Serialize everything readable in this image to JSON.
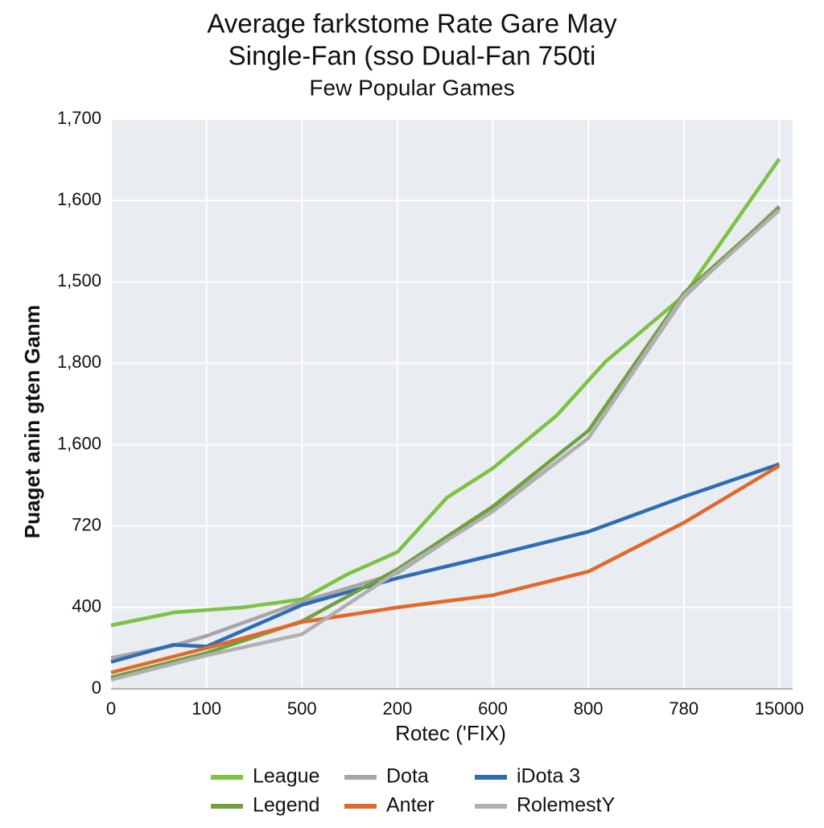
{
  "chart_data": {
    "type": "line",
    "title": "Average farkstome Rate Gare May",
    "subtitle": "Single-Fan (sso Dual-Fan 750ti",
    "annotation": "Few Popular Games",
    "xlabel": "Rotec ('FIX)",
    "ylabel": "Puaget anin gten Ganm",
    "xlim": [
      0,
      7.14
    ],
    "ylim": [
      0,
      7
    ],
    "xticks": [
      0,
      {
        "value": 1,
        "label": "100"
      },
      {
        "value": 2,
        "label": "500"
      },
      {
        "value": 3,
        "label": "200"
      },
      {
        "value": 4,
        "label": "600"
      },
      {
        "value": 5,
        "label": "800"
      },
      {
        "value": 6,
        "label": "780"
      },
      {
        "value": 7,
        "label": "15000"
      }
    ],
    "yticks": [
      0,
      {
        "value": 1,
        "label": "400"
      },
      {
        "value": 2,
        "label": "720"
      },
      {
        "value": 3,
        "label": "1,600"
      },
      {
        "value": 4,
        "label": "1,800"
      },
      {
        "value": 5,
        "label": "1,500"
      },
      {
        "value": 6,
        "label": "1,600"
      },
      {
        "value": 7,
        "label": "1,700"
      }
    ],
    "grid": true,
    "legend": "bottom",
    "series": [
      {
        "name": "League",
        "color": "#7dc242",
        "x": [
          0,
          0.67,
          1.38,
          2.0,
          2.48,
          3.0,
          3.52,
          4.0,
          4.67,
          5.18,
          6.0,
          7.0
        ],
        "values": [
          0.78,
          0.94,
          1.0,
          1.1,
          1.41,
          1.68,
          2.35,
          2.71,
          3.36,
          4.02,
          4.83,
          6.51
        ]
      },
      {
        "name": "Dota",
        "color": "#a6a6a6",
        "x": [
          0,
          0.65,
          1.0,
          2.0,
          3.0,
          4.0,
          5.0,
          6.0,
          7.0
        ],
        "values": [
          0.38,
          0.53,
          0.65,
          1.07,
          1.42,
          2.2,
          3.08,
          4.81,
          5.93
        ]
      },
      {
        "name": "iDota 3",
        "color": "#2e6db4",
        "x": [
          0,
          0.65,
          1.0,
          2.0,
          3.0,
          4.0,
          5.0,
          6.0,
          7.0
        ],
        "values": [
          0.33,
          0.54,
          0.52,
          1.03,
          1.36,
          1.64,
          1.93,
          2.36,
          2.76
        ]
      },
      {
        "name": "Legend",
        "color": "#70a040",
        "x": [
          0,
          1.0,
          2.0,
          3.0,
          4.0,
          5.0,
          6.0,
          7.0
        ],
        "values": [
          0.14,
          0.44,
          0.83,
          1.47,
          2.24,
          3.17,
          4.86,
          5.91
        ]
      },
      {
        "name": "Anter",
        "color": "#e06a2a",
        "x": [
          0,
          1.0,
          2.0,
          3.0,
          4.0,
          5.0,
          6.0,
          7.0
        ],
        "values": [
          0.2,
          0.5,
          0.82,
          1.0,
          1.15,
          1.44,
          2.04,
          2.74
        ]
      },
      {
        "name": "RolemestY",
        "color": "#b0b0b0",
        "x": [
          0,
          1.0,
          2.0,
          3.0,
          4.0,
          5.0,
          6.0,
          7.0
        ],
        "values": [
          0.11,
          0.41,
          0.67,
          1.44,
          2.18,
          3.08,
          4.83,
          5.88
        ]
      }
    ]
  }
}
